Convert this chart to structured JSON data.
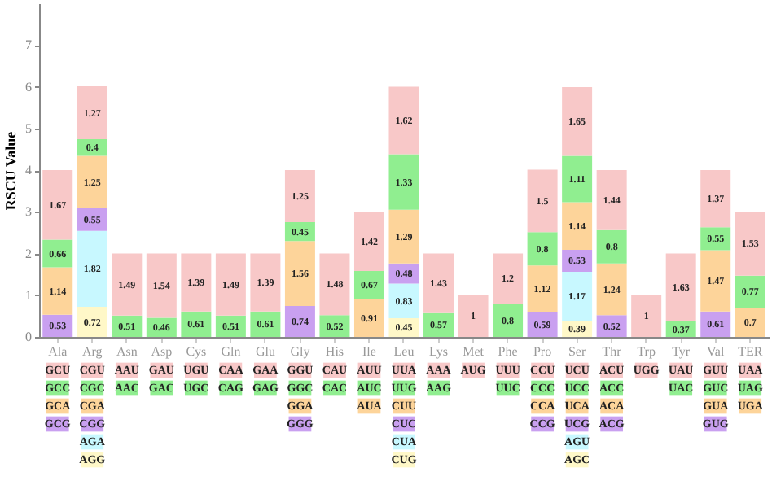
{
  "chart_data": {
    "type": "bar",
    "stacked": true,
    "ylabel": "RSCU Value",
    "ylim": [
      0,
      8
    ],
    "yticks": [
      0,
      1,
      2,
      3,
      4,
      5,
      6,
      7
    ],
    "grid": false,
    "data_labels": true,
    "categories": [
      "Ala",
      "Arg",
      "Asn",
      "Asp",
      "Cys",
      "Gln",
      "Glu",
      "Gly",
      "His",
      "Ile",
      "Leu",
      "Lys",
      "Met",
      "Phe",
      "Pro",
      "Ser",
      "Thr",
      "Trp",
      "Tyr",
      "Val",
      "TER"
    ],
    "series": [
      {
        "color": "#fff8c8",
        "values": [
          null,
          0.72,
          null,
          null,
          null,
          null,
          null,
          null,
          null,
          null,
          0.45,
          null,
          null,
          null,
          null,
          0.39,
          null,
          null,
          null,
          null,
          null
        ]
      },
      {
        "color": "#c8f8ff",
        "values": [
          null,
          1.82,
          null,
          null,
          null,
          null,
          null,
          null,
          null,
          null,
          0.83,
          null,
          null,
          null,
          null,
          1.17,
          null,
          null,
          null,
          null,
          null
        ]
      },
      {
        "color": "#c9a0f0",
        "values": [
          0.53,
          0.55,
          null,
          null,
          null,
          null,
          null,
          0.74,
          null,
          null,
          0.48,
          null,
          null,
          null,
          0.59,
          0.53,
          0.52,
          null,
          null,
          0.61,
          null
        ]
      },
      {
        "color": "#fdd49a",
        "values": [
          1.14,
          1.25,
          null,
          null,
          null,
          null,
          null,
          1.56,
          null,
          0.91,
          1.29,
          null,
          null,
          null,
          1.12,
          1.14,
          1.24,
          null,
          null,
          1.47,
          0.7
        ]
      },
      {
        "color": "#90ee90",
        "values": [
          0.66,
          0.4,
          0.51,
          0.46,
          0.61,
          0.51,
          0.61,
          0.45,
          0.52,
          0.67,
          1.33,
          0.57,
          null,
          0.8,
          0.8,
          1.11,
          0.8,
          null,
          0.37,
          0.55,
          0.77
        ]
      },
      {
        "color": "#f8c8c8",
        "values": [
          1.67,
          1.27,
          1.49,
          1.54,
          1.39,
          1.49,
          1.39,
          1.25,
          1.48,
          1.42,
          1.62,
          1.43,
          1,
          1.2,
          1.5,
          1.65,
          1.44,
          1,
          1.63,
          1.37,
          1.53
        ]
      }
    ],
    "annotations": [
      "GCU",
      "GCC",
      "GCA",
      "GCG",
      "CGU",
      "CGC",
      "CGA",
      "CGG",
      "AGA",
      "AGG",
      "AAU",
      "AAC",
      "GAU",
      "GAC",
      "UGU",
      "UGC",
      "CAA",
      "CAG",
      "GAA",
      "GAG",
      "GGU",
      "GGC",
      "GGA",
      "GGG",
      "CAU",
      "CAC",
      "AUU",
      "AUC",
      "AUA",
      "UUA",
      "UUG",
      "CUU",
      "CUC",
      "CUA",
      "CUG",
      "AAA",
      "AAG",
      "AUG",
      "UUU",
      "UUC",
      "CCU",
      "CCC",
      "CCA",
      "CCG",
      "UCU",
      "UCC",
      "UCA",
      "UCG",
      "AGU",
      "AGC",
      "ACU",
      "ACC",
      "ACA",
      "ACG",
      "UGG",
      "UAU",
      "UAC",
      "GUU",
      "GUC",
      "GUA",
      "GUG",
      "UAA",
      "UAG",
      "UGA"
    ]
  }
}
